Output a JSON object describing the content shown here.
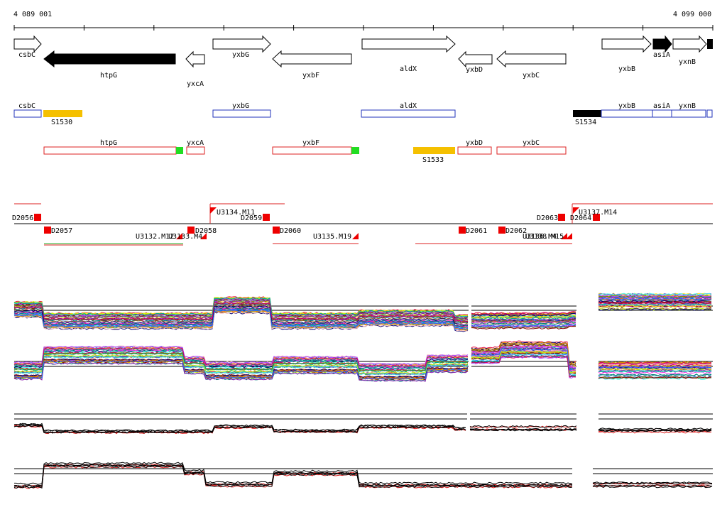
{
  "coords": {
    "start": "4 089 001",
    "end": "4 099 000"
  },
  "colors": {
    "forward_outline": "#000000",
    "reverse_fill": "#000000",
    "blue_track": "#2233bb",
    "red_track": "#dd2222",
    "orange_feature": "#f5c000",
    "green_marker": "#22dd22",
    "red_marker": "#ee0000"
  },
  "genes": [
    {
      "label": "csbC",
      "strand": "+",
      "fill": "white"
    },
    {
      "label": "htpG",
      "strand": "-",
      "fill": "black"
    },
    {
      "label": "yxcA",
      "strand": "-",
      "fill": "white"
    },
    {
      "label": "yxbG",
      "strand": "+",
      "fill": "white"
    },
    {
      "label": "yxbF",
      "strand": "-",
      "fill": "white"
    },
    {
      "label": "aldX",
      "strand": "+",
      "fill": "white"
    },
    {
      "label": "yxbD",
      "strand": "-",
      "fill": "white"
    },
    {
      "label": "yxbC",
      "strand": "-",
      "fill": "white"
    },
    {
      "label": "yxbB",
      "strand": "+",
      "fill": "white"
    },
    {
      "label": "asiA",
      "strand": "+",
      "fill": "black"
    },
    {
      "label": "yxnB",
      "strand": "+",
      "fill": "white"
    }
  ],
  "blue_track": [
    "csbC",
    "yxbG",
    "aldX",
    "yxbB",
    "asiA",
    "yxnB"
  ],
  "orange_track": [
    "S1530",
    "S1533",
    "S1534"
  ],
  "red_track": [
    "htpG",
    "yxcA",
    "yxbF",
    "yxbD",
    "yxbC"
  ],
  "d_labels": [
    "D2056",
    "D2057",
    "D2058",
    "D2059",
    "D2060",
    "D2061",
    "D2062",
    "D2063",
    "D2064"
  ],
  "u_labels": [
    "U3132.M12",
    "U3133.M4",
    "U3134.M11",
    "U3135.M19",
    "U3136.M4",
    "U3137.M14",
    "U3138.M15"
  ]
}
